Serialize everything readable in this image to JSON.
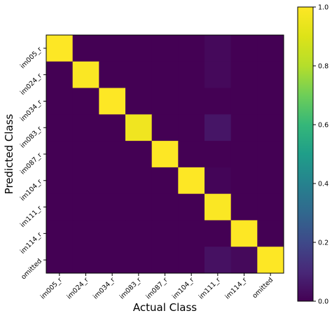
{
  "chart_data": {
    "type": "heatmap",
    "title": "",
    "xlabel": "Actual Class",
    "ylabel": "Predicted Class",
    "x_categories": [
      "im005_r",
      "im024_r",
      "im034_r",
      "im083_r",
      "im087_r",
      "im104_r",
      "im111_r",
      "im114_r",
      "omitted"
    ],
    "y_categories": [
      "im005_r",
      "im024_r",
      "im034_r",
      "im083_r",
      "im087_r",
      "im104_r",
      "im111_r",
      "im114_r",
      "omitted"
    ],
    "values": [
      [
        1.0,
        0.0,
        0.0,
        0.0,
        0.0,
        0.0,
        0.02,
        0.0,
        0.0
      ],
      [
        0.0,
        0.99,
        0.0,
        0.0,
        0.0,
        0.0,
        0.02,
        0.0,
        0.0
      ],
      [
        0.0,
        0.0,
        1.0,
        0.0,
        0.0,
        0.0,
        0.0,
        0.0,
        0.0
      ],
      [
        0.0,
        0.0,
        0.0,
        0.96,
        0.0,
        0.0,
        0.05,
        0.0,
        0.0
      ],
      [
        0.0,
        0.0,
        0.0,
        0.0,
        1.0,
        0.0,
        0.0,
        0.0,
        0.0
      ],
      [
        0.0,
        0.0,
        0.0,
        0.0,
        0.0,
        1.0,
        0.01,
        0.0,
        0.0
      ],
      [
        0.0,
        0.0,
        0.0,
        0.0,
        0.0,
        0.0,
        0.99,
        0.0,
        0.0
      ],
      [
        0.0,
        0.0,
        0.0,
        0.0,
        0.0,
        0.0,
        0.0,
        1.0,
        0.0
      ],
      [
        0.0,
        0.0,
        0.0,
        0.0,
        0.0,
        0.0,
        0.04,
        0.02,
        1.0
      ]
    ],
    "colormap": "viridis",
    "colorbar": {
      "range": [
        0.0,
        1.0
      ],
      "ticks": [
        "0.0",
        "0.2",
        "0.4",
        "0.6",
        "0.8",
        "1.0"
      ]
    },
    "grid": false
  }
}
